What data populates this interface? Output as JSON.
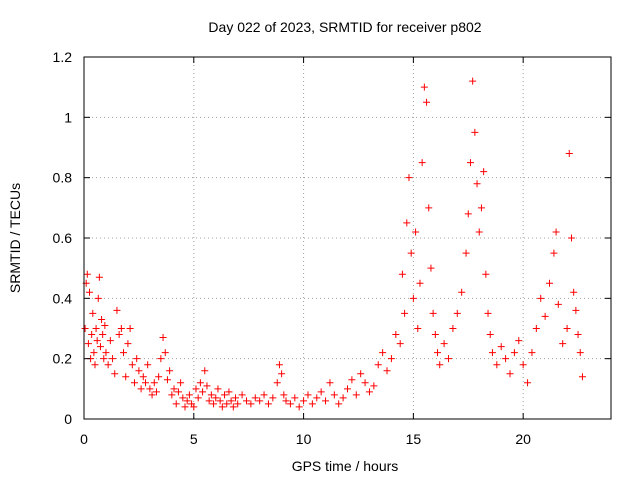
{
  "chart_data": {
    "type": "scatter",
    "title": "Day 022 of 2023, SRMTID for receiver p802",
    "xlabel": "GPS time / hours",
    "ylabel": "SRMTID / TECUs",
    "xlim": [
      0,
      24
    ],
    "ylim": [
      0,
      1.2
    ],
    "xticks": [
      0,
      5,
      10,
      15,
      20
    ],
    "xtick_labels": [
      "0",
      "5",
      "10",
      "15",
      "20"
    ],
    "yticks": [
      0,
      0.2,
      0.4,
      0.6,
      0.8,
      1.0,
      1.2
    ],
    "ytick_labels": [
      "0",
      "0.2",
      "0.4",
      "0.6",
      "0.8",
      "1",
      "1.2"
    ],
    "grid": true,
    "marker": "+",
    "color": "#ff0000",
    "series": [
      {
        "name": "SRMTID",
        "points": [
          [
            0.05,
            0.3
          ],
          [
            0.1,
            0.45
          ],
          [
            0.15,
            0.48
          ],
          [
            0.2,
            0.25
          ],
          [
            0.25,
            0.42
          ],
          [
            0.3,
            0.2
          ],
          [
            0.35,
            0.28
          ],
          [
            0.4,
            0.35
          ],
          [
            0.45,
            0.22
          ],
          [
            0.5,
            0.18
          ],
          [
            0.55,
            0.3
          ],
          [
            0.6,
            0.26
          ],
          [
            0.65,
            0.4
          ],
          [
            0.7,
            0.47
          ],
          [
            0.75,
            0.24
          ],
          [
            0.8,
            0.33
          ],
          [
            0.85,
            0.28
          ],
          [
            0.9,
            0.2
          ],
          [
            0.95,
            0.31
          ],
          [
            1.0,
            0.22
          ],
          [
            1.1,
            0.18
          ],
          [
            1.2,
            0.26
          ],
          [
            1.3,
            0.2
          ],
          [
            1.4,
            0.15
          ],
          [
            1.5,
            0.36
          ],
          [
            1.6,
            0.28
          ],
          [
            1.7,
            0.3
          ],
          [
            1.8,
            0.22
          ],
          [
            1.9,
            0.14
          ],
          [
            2.0,
            0.25
          ],
          [
            2.1,
            0.3
          ],
          [
            2.2,
            0.18
          ],
          [
            2.3,
            0.12
          ],
          [
            2.4,
            0.2
          ],
          [
            2.5,
            0.16
          ],
          [
            2.6,
            0.1
          ],
          [
            2.7,
            0.14
          ],
          [
            2.8,
            0.12
          ],
          [
            2.9,
            0.18
          ],
          [
            3.0,
            0.1
          ],
          [
            3.1,
            0.08
          ],
          [
            3.2,
            0.12
          ],
          [
            3.3,
            0.09
          ],
          [
            3.4,
            0.14
          ],
          [
            3.5,
            0.2
          ],
          [
            3.6,
            0.27
          ],
          [
            3.7,
            0.22
          ],
          [
            3.8,
            0.13
          ],
          [
            3.9,
            0.16
          ],
          [
            4.0,
            0.08
          ],
          [
            4.1,
            0.1
          ],
          [
            4.2,
            0.05
          ],
          [
            4.3,
            0.09
          ],
          [
            4.4,
            0.12
          ],
          [
            4.5,
            0.07
          ],
          [
            4.6,
            0.04
          ],
          [
            4.7,
            0.06
          ],
          [
            4.8,
            0.08
          ],
          [
            4.9,
            0.05
          ],
          [
            5.0,
            0.04
          ],
          [
            5.1,
            0.1
          ],
          [
            5.2,
            0.07
          ],
          [
            5.3,
            0.12
          ],
          [
            5.4,
            0.09
          ],
          [
            5.5,
            0.16
          ],
          [
            5.6,
            0.11
          ],
          [
            5.7,
            0.06
          ],
          [
            5.8,
            0.08
          ],
          [
            5.9,
            0.05
          ],
          [
            6.0,
            0.07
          ],
          [
            6.1,
            0.1
          ],
          [
            6.2,
            0.06
          ],
          [
            6.3,
            0.04
          ],
          [
            6.4,
            0.08
          ],
          [
            6.5,
            0.05
          ],
          [
            6.6,
            0.09
          ],
          [
            6.7,
            0.06
          ],
          [
            6.8,
            0.04
          ],
          [
            6.9,
            0.07
          ],
          [
            7.0,
            0.05
          ],
          [
            7.2,
            0.08
          ],
          [
            7.4,
            0.06
          ],
          [
            7.6,
            0.05
          ],
          [
            7.8,
            0.07
          ],
          [
            8.0,
            0.06
          ],
          [
            8.2,
            0.08
          ],
          [
            8.4,
            0.05
          ],
          [
            8.6,
            0.07
          ],
          [
            8.8,
            0.12
          ],
          [
            8.9,
            0.18
          ],
          [
            9.0,
            0.15
          ],
          [
            9.1,
            0.08
          ],
          [
            9.2,
            0.06
          ],
          [
            9.4,
            0.05
          ],
          [
            9.6,
            0.07
          ],
          [
            9.8,
            0.04
          ],
          [
            10.0,
            0.06
          ],
          [
            10.2,
            0.08
          ],
          [
            10.4,
            0.05
          ],
          [
            10.6,
            0.07
          ],
          [
            10.8,
            0.09
          ],
          [
            11.0,
            0.06
          ],
          [
            11.2,
            0.12
          ],
          [
            11.4,
            0.08
          ],
          [
            11.6,
            0.05
          ],
          [
            11.8,
            0.07
          ],
          [
            12.0,
            0.1
          ],
          [
            12.2,
            0.13
          ],
          [
            12.4,
            0.08
          ],
          [
            12.6,
            0.15
          ],
          [
            12.8,
            0.12
          ],
          [
            13.0,
            0.09
          ],
          [
            13.2,
            0.11
          ],
          [
            13.4,
            0.18
          ],
          [
            13.6,
            0.22
          ],
          [
            13.8,
            0.16
          ],
          [
            14.0,
            0.2
          ],
          [
            14.2,
            0.28
          ],
          [
            14.4,
            0.25
          ],
          [
            14.5,
            0.48
          ],
          [
            14.6,
            0.35
          ],
          [
            14.7,
            0.65
          ],
          [
            14.8,
            0.8
          ],
          [
            14.9,
            0.55
          ],
          [
            15.0,
            0.4
          ],
          [
            15.1,
            0.62
          ],
          [
            15.2,
            0.3
          ],
          [
            15.3,
            0.45
          ],
          [
            15.4,
            0.85
          ],
          [
            15.5,
            1.1
          ],
          [
            15.6,
            1.05
          ],
          [
            15.7,
            0.7
          ],
          [
            15.8,
            0.5
          ],
          [
            15.9,
            0.35
          ],
          [
            16.0,
            0.28
          ],
          [
            16.1,
            0.22
          ],
          [
            16.2,
            0.18
          ],
          [
            16.4,
            0.25
          ],
          [
            16.6,
            0.2
          ],
          [
            16.8,
            0.3
          ],
          [
            17.0,
            0.35
          ],
          [
            17.2,
            0.42
          ],
          [
            17.4,
            0.55
          ],
          [
            17.5,
            0.68
          ],
          [
            17.6,
            0.85
          ],
          [
            17.7,
            1.12
          ],
          [
            17.8,
            0.95
          ],
          [
            17.9,
            0.78
          ],
          [
            18.0,
            0.62
          ],
          [
            18.1,
            0.7
          ],
          [
            18.2,
            0.82
          ],
          [
            18.3,
            0.48
          ],
          [
            18.4,
            0.35
          ],
          [
            18.5,
            0.28
          ],
          [
            18.6,
            0.22
          ],
          [
            18.8,
            0.18
          ],
          [
            19.0,
            0.24
          ],
          [
            19.2,
            0.2
          ],
          [
            19.4,
            0.15
          ],
          [
            19.6,
            0.22
          ],
          [
            19.8,
            0.26
          ],
          [
            20.0,
            0.18
          ],
          [
            20.2,
            0.12
          ],
          [
            20.4,
            0.22
          ],
          [
            20.6,
            0.3
          ],
          [
            20.8,
            0.4
          ],
          [
            21.0,
            0.34
          ],
          [
            21.2,
            0.45
          ],
          [
            21.4,
            0.55
          ],
          [
            21.5,
            0.62
          ],
          [
            21.6,
            0.38
          ],
          [
            21.8,
            0.25
          ],
          [
            22.0,
            0.3
          ],
          [
            22.1,
            0.88
          ],
          [
            22.2,
            0.6
          ],
          [
            22.3,
            0.42
          ],
          [
            22.4,
            0.36
          ],
          [
            22.5,
            0.28
          ],
          [
            22.6,
            0.22
          ],
          [
            22.7,
            0.14
          ]
        ]
      }
    ]
  }
}
